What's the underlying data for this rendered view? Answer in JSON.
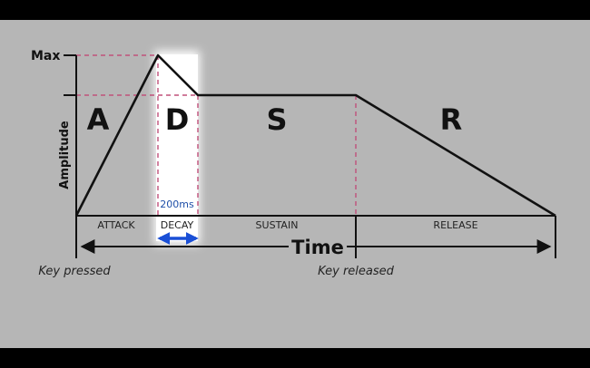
{
  "diagram": {
    "y_axis_label": "Amplitude",
    "y_max_label": "Max",
    "x_axis_label": "Time",
    "phases": [
      {
        "letter": "A",
        "label": "ATTACK"
      },
      {
        "letter": "D",
        "label": "DECAY"
      },
      {
        "letter": "S",
        "label": "SUSTAIN"
      },
      {
        "letter": "R",
        "label": "RELEASE"
      }
    ],
    "decay_duration_label": "200ms",
    "key_pressed_label": "Key pressed",
    "key_released_label": "Key released",
    "colors": {
      "background": "#b6b6b6",
      "frame_bars": "#000000",
      "envelope_line": "#111111",
      "guide_lines": "#c0507a",
      "decay_highlight": "#ffffff",
      "duration_arrow": "#1a4fd6"
    }
  }
}
